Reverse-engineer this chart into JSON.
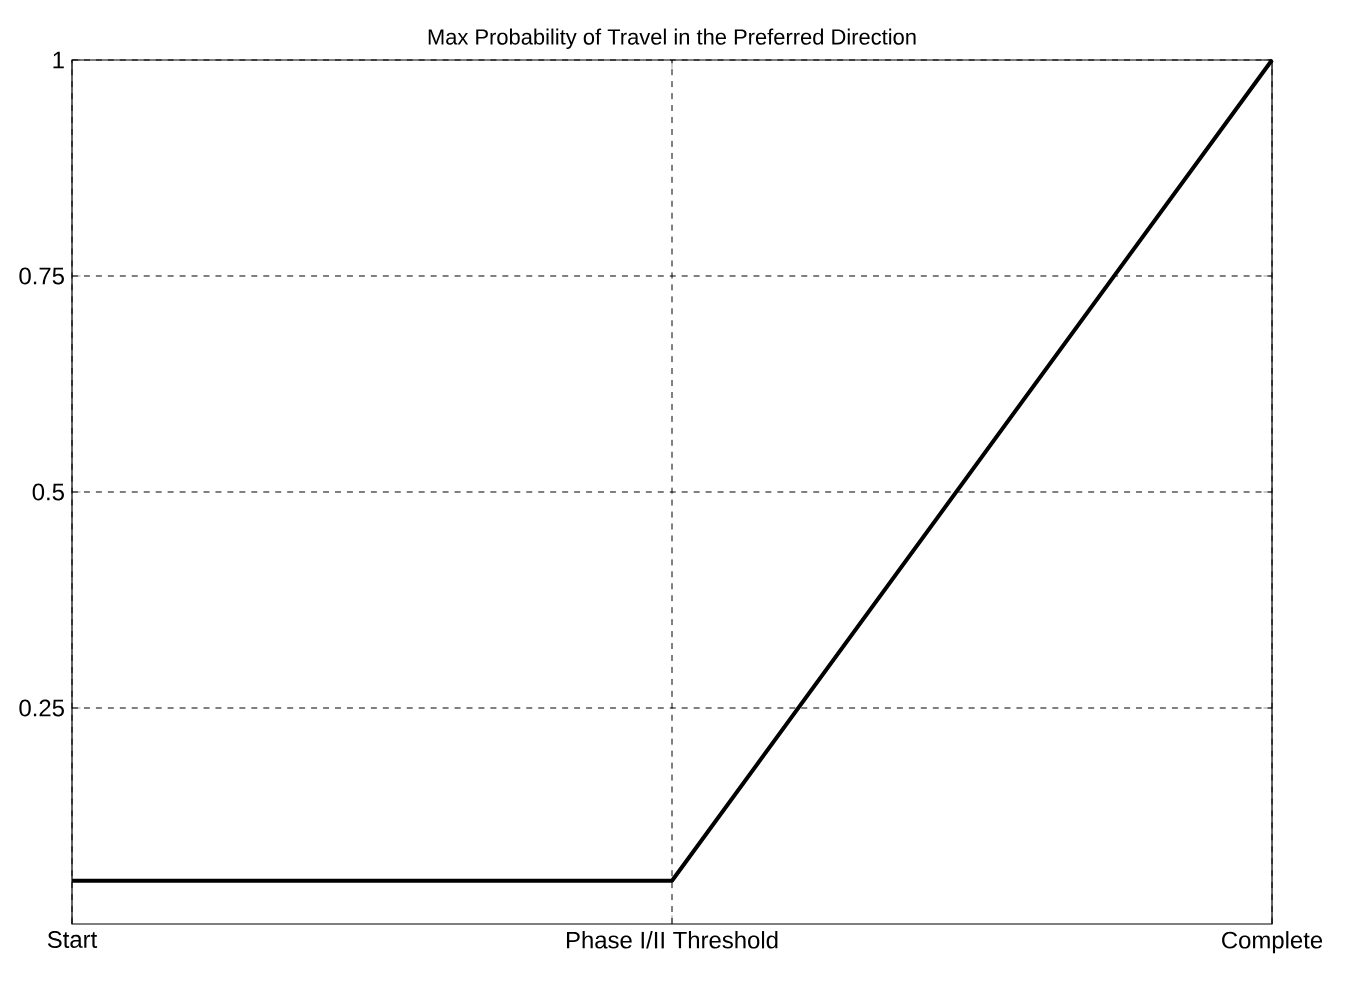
{
  "chart_data": {
    "type": "line",
    "title": "Max Probability of Travel in the Preferred Direction",
    "categories": [
      "Start",
      "Phase I/II Threshold",
      "Complete"
    ],
    "series": [
      {
        "color": "#000000",
        "values": [
          0.05,
          0.05,
          1
        ]
      }
    ],
    "ylim": [
      0,
      1
    ],
    "yticks": [
      {
        "value": 0.25,
        "label": "0.25"
      },
      {
        "value": 0.5,
        "label": "0.5"
      },
      {
        "value": 0.75,
        "label": "0.75"
      },
      {
        "value": 1,
        "label": "1"
      }
    ],
    "grid": true,
    "line_style": "solid",
    "marker": "none"
  }
}
